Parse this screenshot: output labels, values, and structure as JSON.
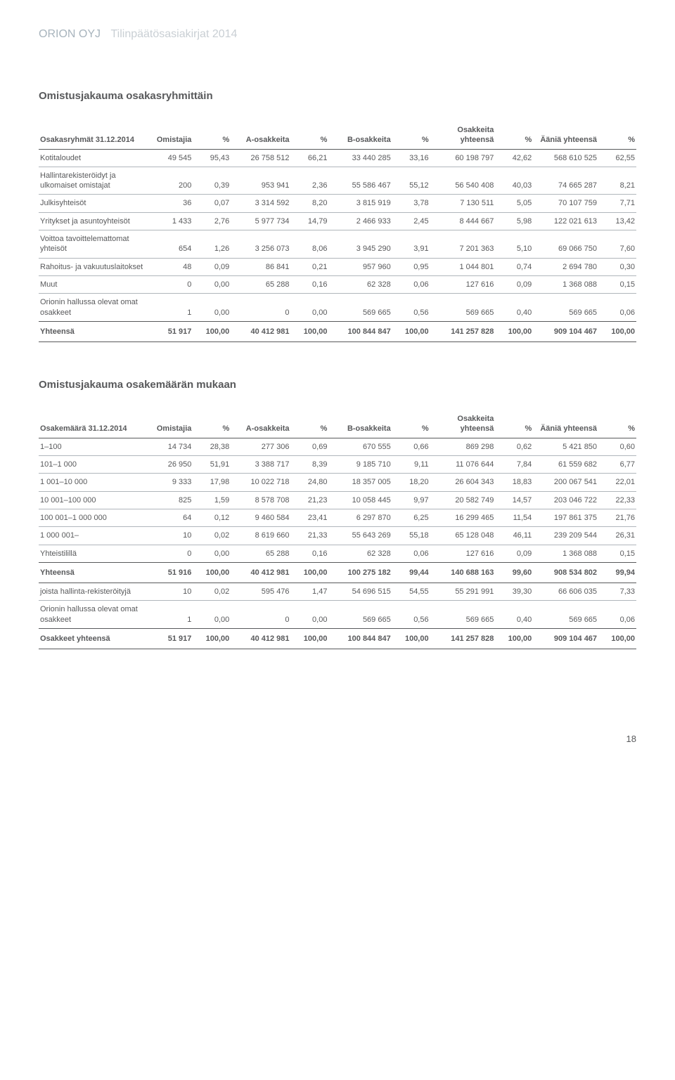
{
  "header": {
    "company": "ORION OYJ",
    "doc": "Tilinpäätösasiakirjat 2014"
  },
  "section1": {
    "title": "Omistusjakauma osakasryhmittäin",
    "col_headers": {
      "label": "Osakasryhmät 31.12.2014",
      "omistajia": "Omistajia",
      "pct1": "%",
      "a_osakkeita": "A-osakkeita",
      "pct2": "%",
      "b_osakkeita": "B-osakkeita",
      "pct3": "%",
      "osakkeita": "Osakkeita yhteensä",
      "pct4": "%",
      "aania": "Ääniä yhteensä",
      "pct5": "%"
    },
    "rows": [
      {
        "label": "Kotitaloudet",
        "c": [
          "49 545",
          "95,43",
          "26 758 512",
          "66,21",
          "33 440 285",
          "33,16",
          "60 198 797",
          "42,62",
          "568 610 525",
          "62,55"
        ]
      },
      {
        "label": "Hallintarekisteröidyt ja ulkomaiset omistajat",
        "c": [
          "200",
          "0,39",
          "953 941",
          "2,36",
          "55 586 467",
          "55,12",
          "56 540 408",
          "40,03",
          "74 665 287",
          "8,21"
        ]
      },
      {
        "label": "Julkisyhteisöt",
        "c": [
          "36",
          "0,07",
          "3 314 592",
          "8,20",
          "3 815 919",
          "3,78",
          "7 130 511",
          "5,05",
          "70 107 759",
          "7,71"
        ]
      },
      {
        "label": "Yritykset ja asuntoyhteisöt",
        "c": [
          "1 433",
          "2,76",
          "5 977 734",
          "14,79",
          "2 466 933",
          "2,45",
          "8 444 667",
          "5,98",
          "122 021 613",
          "13,42"
        ]
      },
      {
        "label": "Voittoa tavoittelemattomat yhteisöt",
        "c": [
          "654",
          "1,26",
          "3 256 073",
          "8,06",
          "3 945 290",
          "3,91",
          "7 201 363",
          "5,10",
          "69 066 750",
          "7,60"
        ]
      },
      {
        "label": "Rahoitus- ja vakuutuslaitokset",
        "c": [
          "48",
          "0,09",
          "86 841",
          "0,21",
          "957 960",
          "0,95",
          "1 044 801",
          "0,74",
          "2 694 780",
          "0,30"
        ]
      },
      {
        "label": "Muut",
        "c": [
          "0",
          "0,00",
          "65 288",
          "0,16",
          "62 328",
          "0,06",
          "127 616",
          "0,09",
          "1 368 088",
          "0,15"
        ]
      },
      {
        "label": "Orionin hallussa olevat omat osakkeet",
        "c": [
          "1",
          "0,00",
          "0",
          "0,00",
          "569 665",
          "0,56",
          "569 665",
          "0,40",
          "569 665",
          "0,06"
        ]
      }
    ],
    "total": {
      "label": "Yhteensä",
      "c": [
        "51 917",
        "100,00",
        "40 412 981",
        "100,00",
        "100 844 847",
        "100,00",
        "141 257 828",
        "100,00",
        "909 104 467",
        "100,00"
      ]
    }
  },
  "section2": {
    "title": "Omistusjakauma osakemäärän mukaan",
    "col_headers": {
      "label": "Osakemäärä 31.12.2014",
      "omistajia": "Omistajia",
      "pct1": "%",
      "a_osakkeita": "A-osakkeita",
      "pct2": "%",
      "b_osakkeita": "B-osakkeita",
      "pct3": "%",
      "osakkeita": "Osakkeita yhteensä",
      "pct4": "%",
      "aania": "Ääniä yhteensä",
      "pct5": "%"
    },
    "rows": [
      {
        "label": "1–100",
        "c": [
          "14 734",
          "28,38",
          "277 306",
          "0,69",
          "670 555",
          "0,66",
          "869 298",
          "0,62",
          "5 421 850",
          "0,60"
        ]
      },
      {
        "label": "101–1 000",
        "c": [
          "26 950",
          "51,91",
          "3 388 717",
          "8,39",
          "9 185 710",
          "9,11",
          "11 076 644",
          "7,84",
          "61 559 682",
          "6,77"
        ]
      },
      {
        "label": "1 001–10 000",
        "c": [
          "9 333",
          "17,98",
          "10 022 718",
          "24,80",
          "18 357 005",
          "18,20",
          "26 604 343",
          "18,83",
          "200 067 541",
          "22,01"
        ]
      },
      {
        "label": "10 001–100 000",
        "c": [
          "825",
          "1,59",
          "8 578 708",
          "21,23",
          "10 058 445",
          "9,97",
          "20 582 749",
          "14,57",
          "203 046 722",
          "22,33"
        ]
      },
      {
        "label": "100 001–1 000 000",
        "c": [
          "64",
          "0,12",
          "9 460 584",
          "23,41",
          "6 297 870",
          "6,25",
          "16 299 465",
          "11,54",
          "197 861 375",
          "21,76"
        ]
      },
      {
        "label": "1 000 001–",
        "c": [
          "10",
          "0,02",
          "8 619 660",
          "21,33",
          "55 643 269",
          "55,18",
          "65 128 048",
          "46,11",
          "239 209 544",
          "26,31"
        ]
      },
      {
        "label": "Yhteistilillä",
        "c": [
          "0",
          "0,00",
          "65 288",
          "0,16",
          "62 328",
          "0,06",
          "127 616",
          "0,09",
          "1 368 088",
          "0,15"
        ]
      }
    ],
    "total": {
      "label": "Yhteensä",
      "c": [
        "51 916",
        "100,00",
        "40 412 981",
        "100,00",
        "100 275 182",
        "99,44",
        "140 688 163",
        "99,60",
        "908 534 802",
        "99,94"
      ]
    },
    "extra_rows": [
      {
        "label": "joista hallinta-rekisteröityjä",
        "c": [
          "10",
          "0,02",
          "595 476",
          "1,47",
          "54 696 515",
          "54,55",
          "55 291 991",
          "39,30",
          "66 606 035",
          "7,33"
        ]
      },
      {
        "label": "Orionin hallussa olevat omat osakkeet",
        "c": [
          "1",
          "0,00",
          "0",
          "0,00",
          "569 665",
          "0,56",
          "569 665",
          "0,40",
          "569 665",
          "0,06"
        ]
      }
    ],
    "total2": {
      "label": "Osakkeet yhteensä",
      "c": [
        "51 917",
        "100,00",
        "40 412 981",
        "100,00",
        "100 844 847",
        "100,00",
        "141 257 828",
        "100,00",
        "909 104 467",
        "100,00"
      ]
    }
  },
  "page_number": "18",
  "colwidths": [
    "123px",
    "52px",
    "43px",
    "68px",
    "43px",
    "72px",
    "43px",
    "74px",
    "43px",
    "74px",
    "43px"
  ]
}
